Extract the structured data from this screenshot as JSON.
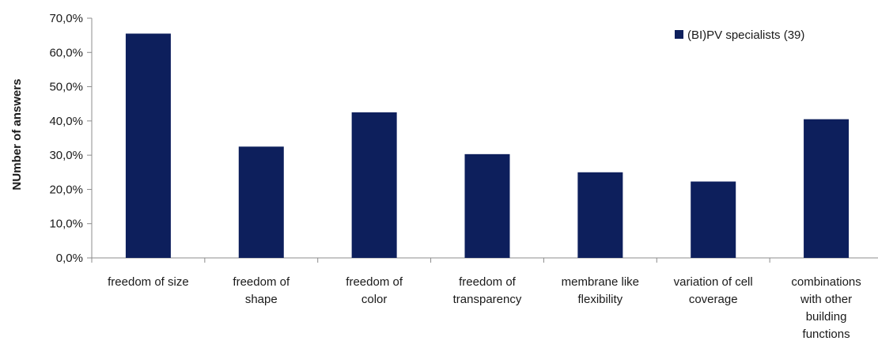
{
  "chart_data": {
    "type": "bar",
    "title": "",
    "xlabel": "",
    "ylabel": "NUmber of answers",
    "ylim": [
      0,
      70
    ],
    "yticks": [
      0,
      10,
      20,
      30,
      40,
      50,
      60,
      70
    ],
    "ytick_labels": [
      "0,0%",
      "10,0%",
      "20,0%",
      "30,0%",
      "40,0%",
      "50,0%",
      "60,0%",
      "70,0%"
    ],
    "categories": [
      [
        "freedom of size"
      ],
      [
        "freedom of",
        "shape"
      ],
      [
        "freedom of",
        "color"
      ],
      [
        "freedom of",
        "transparency"
      ],
      [
        "membrane like",
        "flexibility"
      ],
      [
        "variation of cell",
        "coverage"
      ],
      [
        "combinations",
        "with other",
        "building",
        "functions"
      ]
    ],
    "series": [
      {
        "name": "(BI)PV specialists (39)",
        "color": "#0d1f5c",
        "values": [
          65.5,
          32.5,
          42.5,
          30.3,
          25.0,
          22.3,
          40.5
        ]
      }
    ],
    "grid": false,
    "legend_position": "top-right"
  }
}
